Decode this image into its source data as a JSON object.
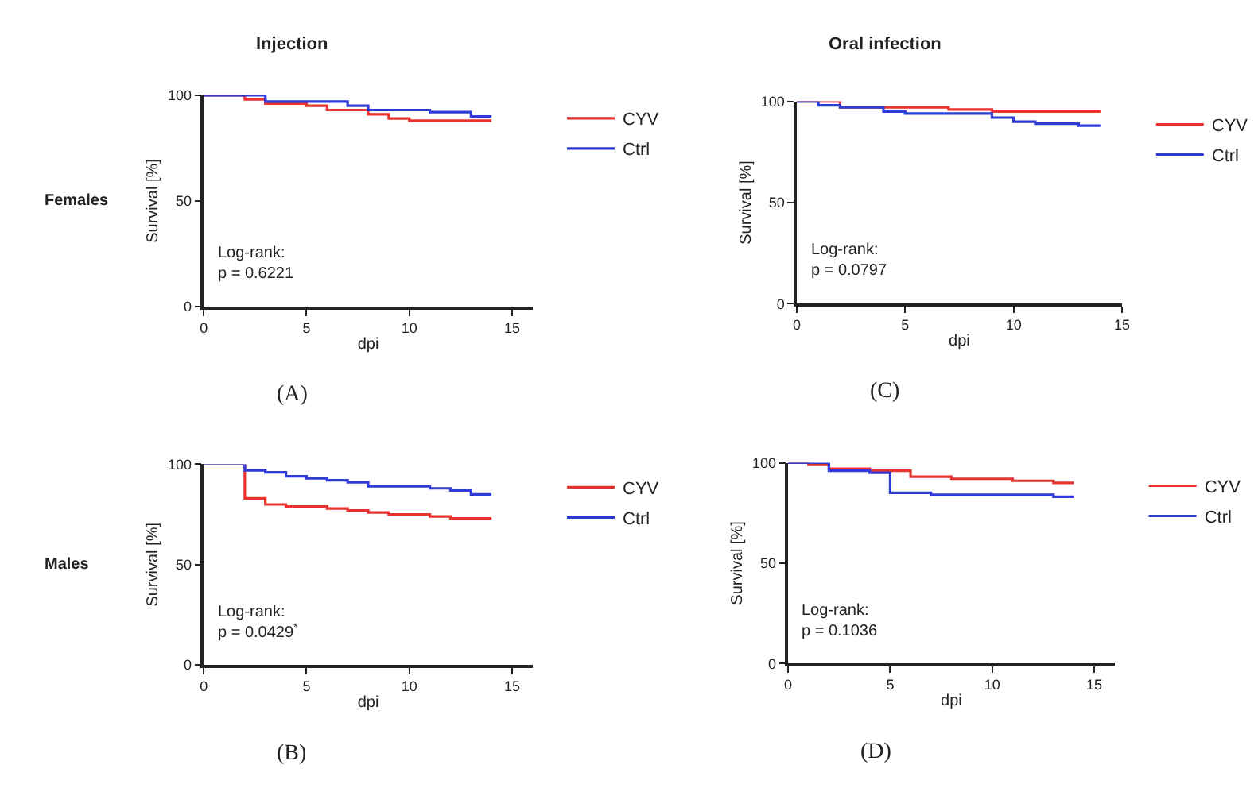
{
  "chart_data": [
    {
      "type": "step",
      "title": "Injection",
      "xlabel": "dpi",
      "ylabel": "Survival [%]",
      "annotations": [
        "Log-rank:\np = 0.6221",
        "(A)",
        "Females"
      ],
      "xlim": [
        0,
        16
      ],
      "xticks": [
        0,
        5,
        10,
        15
      ],
      "ylim": [
        0,
        100
      ],
      "yticks": [
        0,
        50,
        100
      ],
      "legend": "right",
      "line_style": "solid",
      "series": [
        {
          "name": "CYV",
          "color": "#e8332e",
          "x": [
            0,
            2,
            3,
            5,
            6,
            8,
            9,
            10,
            14
          ],
          "values": [
            100,
            98,
            96,
            95,
            93,
            91,
            89,
            88,
            88
          ]
        },
        {
          "name": "Ctrl",
          "color": "#2f3bd6",
          "x": [
            0,
            3,
            7,
            8,
            11,
            13,
            14
          ],
          "values": [
            100,
            97,
            95,
            93,
            92,
            90,
            90
          ]
        }
      ]
    },
    {
      "type": "step",
      "title": "Oral infection",
      "xlabel": "dpi",
      "ylabel": "Survival [%]",
      "annotations": [
        "Log-rank:\np = 0.0797",
        "(C)"
      ],
      "xlim": [
        0,
        15
      ],
      "xticks": [
        0,
        5,
        10,
        15
      ],
      "ylim": [
        0,
        100
      ],
      "yticks": [
        0,
        50,
        100
      ],
      "legend": "right",
      "line_style": "solid",
      "series": [
        {
          "name": "CYV",
          "color": "#e8332e",
          "x": [
            0,
            2,
            7,
            9,
            14
          ],
          "values": [
            100,
            97,
            96,
            95,
            95
          ]
        },
        {
          "name": "Ctrl",
          "color": "#2f3bd6",
          "x": [
            0,
            1,
            2,
            4,
            5,
            9,
            10,
            11,
            13,
            14
          ],
          "values": [
            100,
            98,
            97,
            95,
            94,
            92,
            90,
            89,
            88,
            88
          ]
        }
      ]
    },
    {
      "type": "step",
      "xlabel": "dpi",
      "ylabel": "Survival [%]",
      "annotations": [
        "Log-rank:\np = 0.0429$^{*}$",
        "(B)",
        "Males"
      ],
      "xlim": [
        0,
        16
      ],
      "xticks": [
        0,
        5,
        10,
        15
      ],
      "ylim": [
        0,
        100
      ],
      "yticks": [
        0,
        50,
        100
      ],
      "legend": "right",
      "line_style": "solid",
      "series": [
        {
          "name": "CYV",
          "color": "#e8332e",
          "x": [
            0,
            2,
            3,
            4,
            6,
            7,
            8,
            9,
            11,
            12,
            14
          ],
          "values": [
            100,
            83,
            80,
            79,
            78,
            77,
            76,
            75,
            74,
            73,
            73
          ]
        },
        {
          "name": "Ctrl",
          "color": "#2f3bd6",
          "x": [
            0,
            2,
            3,
            4,
            5,
            6,
            7,
            8,
            11,
            12,
            13,
            14
          ],
          "values": [
            100,
            97,
            96,
            94,
            93,
            92,
            91,
            89,
            88,
            87,
            85,
            85
          ]
        }
      ]
    },
    {
      "type": "step",
      "xlabel": "dpi",
      "ylabel": "Survival [%]",
      "annotations": [
        "Log-rank:\np = 0.1036",
        "(D)"
      ],
      "xlim": [
        0,
        16
      ],
      "xticks": [
        0,
        5,
        10,
        15
      ],
      "ylim": [
        0,
        100
      ],
      "yticks": [
        0,
        50,
        100
      ],
      "legend": "right",
      "line_style": "solid",
      "series": [
        {
          "name": "CYV",
          "color": "#e8332e",
          "x": [
            0,
            1,
            2,
            4,
            6,
            8,
            11,
            13,
            14
          ],
          "values": [
            100,
            99,
            97,
            96,
            93,
            92,
            91,
            90,
            90
          ]
        },
        {
          "name": "Ctrl",
          "color": "#2f3bd6",
          "x": [
            0,
            2,
            4,
            5,
            7,
            13,
            14
          ],
          "values": [
            100,
            96,
            95,
            85,
            84,
            83,
            83
          ]
        }
      ]
    }
  ]
}
